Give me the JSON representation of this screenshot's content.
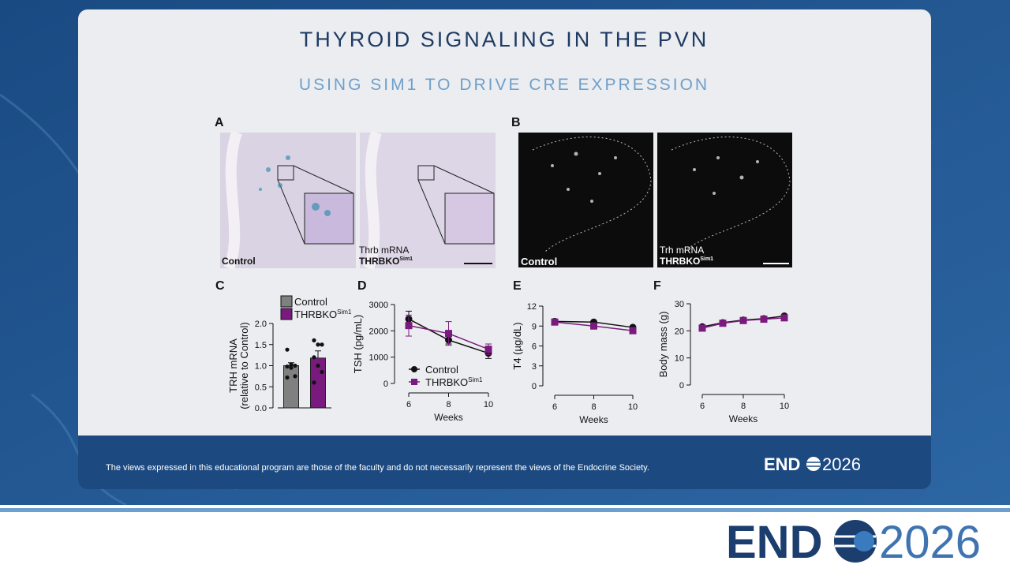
{
  "slide": {
    "title": "THYROID SIGNALING IN THE PVN",
    "subtitle": "USING SIM1 TO DRIVE CRE EXPRESSION",
    "disclaimer": "The views expressed in this educational program are those of the faculty and do not necessarily represent the views of the Endocrine Society.",
    "logo": {
      "left": "END",
      "right": "2026"
    }
  },
  "panels": [
    {
      "letter": "A",
      "left_label": "Control",
      "right_label": "Thrb mRNA",
      "right_group": {
        "main": "THRBKO",
        "sup": "Sim1"
      }
    },
    {
      "letter": "B",
      "left_label": "Control",
      "right_label": "Trh mRNA",
      "right_group": {
        "main": "THRBKO",
        "sup": "Sim1"
      }
    }
  ],
  "chart_data": [
    {
      "type": "bar",
      "panel": "C",
      "ylabel": [
        "TRH mRNA",
        "(relative to Control)"
      ],
      "ylim": [
        0,
        2.0
      ],
      "yticks": [
        {
          "value": 0,
          "label": "0.0"
        },
        {
          "value": 0.5,
          "label": "0.5"
        },
        {
          "value": 1,
          "label": "1.0"
        },
        {
          "value": 1.5,
          "label": "1.5"
        },
        {
          "value": 2,
          "label": "2.0"
        }
      ],
      "series": [
        {
          "name": "Control",
          "color": "#808080",
          "values": [
            1.0
          ],
          "errors": [
            0.07
          ],
          "points": [
            1.38,
            1.03,
            1.0,
            0.98,
            0.95,
            0.75,
            0.72
          ]
        },
        {
          "name": "THRBKO",
          "name_sup": "Sim1",
          "color": "#7b1a7e",
          "values": [
            1.18
          ],
          "errors": [
            0.17
          ],
          "points": [
            1.6,
            1.5,
            1.5,
            1.2,
            1.0,
            0.85,
            0.6
          ]
        }
      ]
    },
    {
      "type": "line",
      "panel": "D",
      "ylabel": "TSH (pg/mL)",
      "xlabel": "Weeks",
      "x": [
        6,
        8,
        10
      ],
      "xlim": [
        6,
        10
      ],
      "xticks": [
        6,
        8,
        10
      ],
      "ylim": [
        0,
        3000
      ],
      "yticks": [
        0,
        1000,
        2000,
        3000
      ],
      "series": [
        {
          "name": "Control",
          "color": "#111111",
          "marker": "circle",
          "values": [
            2450,
            1650,
            1150
          ],
          "errors": [
            300,
            150,
            200
          ]
        },
        {
          "name": "THRBKO",
          "name_sup": "Sim1",
          "color": "#7b1a7e",
          "marker": "square",
          "values": [
            2200,
            1900,
            1300
          ],
          "errors": [
            400,
            450,
            200
          ]
        }
      ]
    },
    {
      "type": "line",
      "panel": "E",
      "ylabel": "T4 (µg/dL)",
      "xlabel": "Weeks",
      "x": [
        6,
        8,
        10
      ],
      "xlim": [
        6,
        10
      ],
      "xticks": [
        6,
        8,
        10
      ],
      "ylim": [
        0,
        12
      ],
      "yticks": [
        0,
        3,
        6,
        9,
        12
      ],
      "series": [
        {
          "name": "Control",
          "color": "#111111",
          "marker": "circle",
          "values": [
            9.7,
            9.6,
            8.8
          ]
        },
        {
          "name": "THRBKO",
          "name_sup": "Sim1",
          "color": "#7b1a7e",
          "marker": "square",
          "values": [
            9.6,
            9.0,
            8.3
          ]
        }
      ]
    },
    {
      "type": "line",
      "panel": "F",
      "ylabel": "Body mass (g)",
      "xlabel": "Weeks",
      "x": [
        6,
        7,
        8,
        9,
        10
      ],
      "xlim": [
        6,
        10
      ],
      "xticks": [
        6,
        8,
        10
      ],
      "ylim": [
        0,
        30
      ],
      "yticks": [
        0,
        10,
        20,
        30
      ],
      "series": [
        {
          "name": "Control",
          "color": "#111111",
          "marker": "circle",
          "values": [
            21.5,
            23,
            24,
            24.5,
            25.5
          ]
        },
        {
          "name": "THRBKO",
          "name_sup": "Sim1",
          "color": "#7b1a7e",
          "marker": "square",
          "values": [
            21,
            22.8,
            23.8,
            24.3,
            24.8
          ]
        }
      ]
    }
  ]
}
